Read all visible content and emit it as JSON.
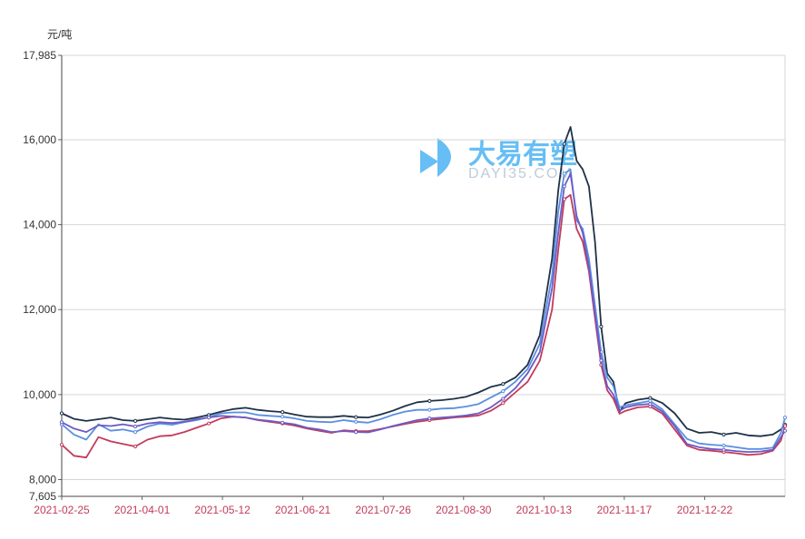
{
  "chart_data": {
    "type": "line",
    "ylabel": "元/吨",
    "ylim": [
      7605,
      17985
    ],
    "y_ticks": [
      "7,605",
      "8,000",
      "10,000",
      "12,000",
      "14,000",
      "16,000",
      "17,985"
    ],
    "x_tick_labels": [
      "2021-02-25",
      "2021-04-01",
      "2021-05-12",
      "2021-06-21",
      "2021-07-26",
      "2021-08-30",
      "2021-10-13",
      "2021-11-17",
      "2021-12-22"
    ],
    "x_tick_color": "#c23b5a",
    "grid": "horizontal",
    "legend": "none",
    "watermark": {
      "brand": "大易有塑",
      "domain": "DAYI35.COM"
    },
    "x_day_range": [
      0,
      312
    ],
    "series": [
      {
        "color": "#1f3146",
        "points": [
          [
            0,
            9560
          ],
          [
            6,
            9430
          ],
          [
            12,
            9380
          ],
          [
            18,
            9420
          ],
          [
            24,
            9460
          ],
          [
            30,
            9400
          ],
          [
            36,
            9380
          ],
          [
            42,
            9420
          ],
          [
            48,
            9460
          ],
          [
            54,
            9430
          ],
          [
            60,
            9410
          ],
          [
            66,
            9460
          ],
          [
            72,
            9520
          ],
          [
            78,
            9600
          ],
          [
            84,
            9660
          ],
          [
            90,
            9690
          ],
          [
            96,
            9640
          ],
          [
            102,
            9610
          ],
          [
            108,
            9590
          ],
          [
            114,
            9530
          ],
          [
            120,
            9480
          ],
          [
            126,
            9470
          ],
          [
            132,
            9470
          ],
          [
            138,
            9500
          ],
          [
            144,
            9470
          ],
          [
            150,
            9460
          ],
          [
            156,
            9530
          ],
          [
            162,
            9620
          ],
          [
            168,
            9730
          ],
          [
            174,
            9820
          ],
          [
            180,
            9850
          ],
          [
            186,
            9870
          ],
          [
            192,
            9900
          ],
          [
            198,
            9950
          ],
          [
            204,
            10050
          ],
          [
            210,
            10180
          ],
          [
            216,
            10250
          ],
          [
            222,
            10400
          ],
          [
            228,
            10700
          ],
          [
            234,
            11400
          ],
          [
            240,
            13200
          ],
          [
            243,
            14800
          ],
          [
            246,
            15900
          ],
          [
            249,
            16300
          ],
          [
            252,
            15500
          ],
          [
            255,
            15300
          ],
          [
            258,
            14900
          ],
          [
            261,
            13600
          ],
          [
            264,
            11600
          ],
          [
            267,
            10500
          ],
          [
            270,
            10300
          ],
          [
            273,
            9600
          ],
          [
            276,
            9800
          ],
          [
            282,
            9880
          ],
          [
            288,
            9920
          ],
          [
            294,
            9800
          ],
          [
            300,
            9560
          ],
          [
            306,
            9200
          ],
          [
            312,
            9100
          ],
          [
            318,
            9120
          ],
          [
            324,
            9060
          ],
          [
            330,
            9100
          ],
          [
            336,
            9040
          ],
          [
            342,
            9020
          ],
          [
            348,
            9060
          ],
          [
            352,
            9180
          ],
          [
            354,
            9290
          ]
        ]
      },
      {
        "color": "#5a8fe0",
        "points": [
          [
            0,
            9300
          ],
          [
            6,
            9060
          ],
          [
            12,
            8940
          ],
          [
            18,
            9300
          ],
          [
            24,
            9150
          ],
          [
            30,
            9180
          ],
          [
            36,
            9120
          ],
          [
            42,
            9250
          ],
          [
            48,
            9320
          ],
          [
            54,
            9290
          ],
          [
            60,
            9350
          ],
          [
            66,
            9400
          ],
          [
            72,
            9470
          ],
          [
            78,
            9560
          ],
          [
            84,
            9580
          ],
          [
            90,
            9580
          ],
          [
            96,
            9520
          ],
          [
            102,
            9500
          ],
          [
            108,
            9480
          ],
          [
            114,
            9440
          ],
          [
            120,
            9380
          ],
          [
            126,
            9360
          ],
          [
            132,
            9350
          ],
          [
            138,
            9400
          ],
          [
            144,
            9360
          ],
          [
            150,
            9340
          ],
          [
            156,
            9420
          ],
          [
            162,
            9520
          ],
          [
            168,
            9600
          ],
          [
            174,
            9640
          ],
          [
            180,
            9640
          ],
          [
            186,
            9670
          ],
          [
            192,
            9680
          ],
          [
            198,
            9720
          ],
          [
            204,
            9780
          ],
          [
            210,
            9930
          ],
          [
            216,
            10080
          ],
          [
            222,
            10300
          ],
          [
            228,
            10600
          ],
          [
            234,
            11200
          ],
          [
            240,
            12800
          ],
          [
            243,
            14300
          ],
          [
            246,
            15200
          ],
          [
            249,
            15300
          ],
          [
            252,
            14100
          ],
          [
            255,
            13900
          ],
          [
            258,
            13200
          ],
          [
            261,
            12100
          ],
          [
            264,
            11000
          ],
          [
            267,
            10400
          ],
          [
            270,
            10200
          ],
          [
            273,
            9700
          ],
          [
            276,
            9750
          ],
          [
            282,
            9800
          ],
          [
            288,
            9850
          ],
          [
            294,
            9650
          ],
          [
            300,
            9300
          ],
          [
            306,
            8960
          ],
          [
            312,
            8850
          ],
          [
            318,
            8820
          ],
          [
            324,
            8800
          ],
          [
            330,
            8760
          ],
          [
            336,
            8720
          ],
          [
            342,
            8720
          ],
          [
            348,
            8750
          ],
          [
            352,
            9100
          ],
          [
            354,
            9460
          ]
        ]
      },
      {
        "color": "#c23b5a",
        "points": [
          [
            0,
            8820
          ],
          [
            6,
            8560
          ],
          [
            12,
            8520
          ],
          [
            18,
            9000
          ],
          [
            24,
            8900
          ],
          [
            30,
            8840
          ],
          [
            36,
            8780
          ],
          [
            42,
            8940
          ],
          [
            48,
            9020
          ],
          [
            54,
            9040
          ],
          [
            60,
            9120
          ],
          [
            66,
            9220
          ],
          [
            72,
            9320
          ],
          [
            78,
            9440
          ],
          [
            84,
            9480
          ],
          [
            90,
            9460
          ],
          [
            96,
            9400
          ],
          [
            102,
            9360
          ],
          [
            108,
            9320
          ],
          [
            114,
            9270
          ],
          [
            120,
            9200
          ],
          [
            126,
            9150
          ],
          [
            132,
            9100
          ],
          [
            138,
            9160
          ],
          [
            144,
            9140
          ],
          [
            150,
            9140
          ],
          [
            156,
            9190
          ],
          [
            162,
            9250
          ],
          [
            168,
            9310
          ],
          [
            174,
            9360
          ],
          [
            180,
            9400
          ],
          [
            186,
            9430
          ],
          [
            192,
            9460
          ],
          [
            198,
            9480
          ],
          [
            204,
            9510
          ],
          [
            210,
            9620
          ],
          [
            216,
            9800
          ],
          [
            222,
            10050
          ],
          [
            228,
            10300
          ],
          [
            234,
            10800
          ],
          [
            240,
            12000
          ],
          [
            243,
            13400
          ],
          [
            246,
            14600
          ],
          [
            249,
            14700
          ],
          [
            252,
            13900
          ],
          [
            255,
            13600
          ],
          [
            258,
            12900
          ],
          [
            261,
            11800
          ],
          [
            264,
            10700
          ],
          [
            267,
            10100
          ],
          [
            270,
            9900
          ],
          [
            273,
            9550
          ],
          [
            276,
            9620
          ],
          [
            282,
            9700
          ],
          [
            288,
            9720
          ],
          [
            294,
            9550
          ],
          [
            300,
            9180
          ],
          [
            306,
            8800
          ],
          [
            312,
            8700
          ],
          [
            318,
            8680
          ],
          [
            324,
            8650
          ],
          [
            330,
            8620
          ],
          [
            336,
            8580
          ],
          [
            342,
            8600
          ],
          [
            348,
            8680
          ],
          [
            352,
            8920
          ],
          [
            354,
            9260
          ]
        ]
      },
      {
        "color": "#6c5bc6",
        "points": [
          [
            0,
            9350
          ],
          [
            6,
            9200
          ],
          [
            12,
            9120
          ],
          [
            18,
            9280
          ],
          [
            24,
            9260
          ],
          [
            30,
            9300
          ],
          [
            36,
            9250
          ],
          [
            42,
            9320
          ],
          [
            48,
            9350
          ],
          [
            54,
            9330
          ],
          [
            60,
            9360
          ],
          [
            66,
            9420
          ],
          [
            72,
            9460
          ],
          [
            78,
            9500
          ],
          [
            84,
            9480
          ],
          [
            90,
            9460
          ],
          [
            96,
            9410
          ],
          [
            102,
            9380
          ],
          [
            108,
            9340
          ],
          [
            114,
            9300
          ],
          [
            120,
            9220
          ],
          [
            126,
            9180
          ],
          [
            132,
            9120
          ],
          [
            138,
            9140
          ],
          [
            144,
            9120
          ],
          [
            150,
            9110
          ],
          [
            156,
            9180
          ],
          [
            162,
            9260
          ],
          [
            168,
            9330
          ],
          [
            174,
            9400
          ],
          [
            180,
            9440
          ],
          [
            186,
            9460
          ],
          [
            192,
            9480
          ],
          [
            198,
            9510
          ],
          [
            204,
            9560
          ],
          [
            210,
            9700
          ],
          [
            216,
            9900
          ],
          [
            222,
            10150
          ],
          [
            228,
            10500
          ],
          [
            234,
            11000
          ],
          [
            240,
            12500
          ],
          [
            243,
            13800
          ],
          [
            246,
            14900
          ],
          [
            249,
            15200
          ],
          [
            252,
            14200
          ],
          [
            255,
            13800
          ],
          [
            258,
            13000
          ],
          [
            261,
            11900
          ],
          [
            264,
            10800
          ],
          [
            267,
            10200
          ],
          [
            270,
            10000
          ],
          [
            273,
            9620
          ],
          [
            276,
            9700
          ],
          [
            282,
            9760
          ],
          [
            288,
            9780
          ],
          [
            294,
            9600
          ],
          [
            300,
            9260
          ],
          [
            306,
            8840
          ],
          [
            312,
            8760
          ],
          [
            318,
            8720
          ],
          [
            324,
            8700
          ],
          [
            330,
            8670
          ],
          [
            336,
            8650
          ],
          [
            342,
            8660
          ],
          [
            348,
            8700
          ],
          [
            352,
            9000
          ],
          [
            354,
            9150
          ]
        ]
      }
    ]
  }
}
